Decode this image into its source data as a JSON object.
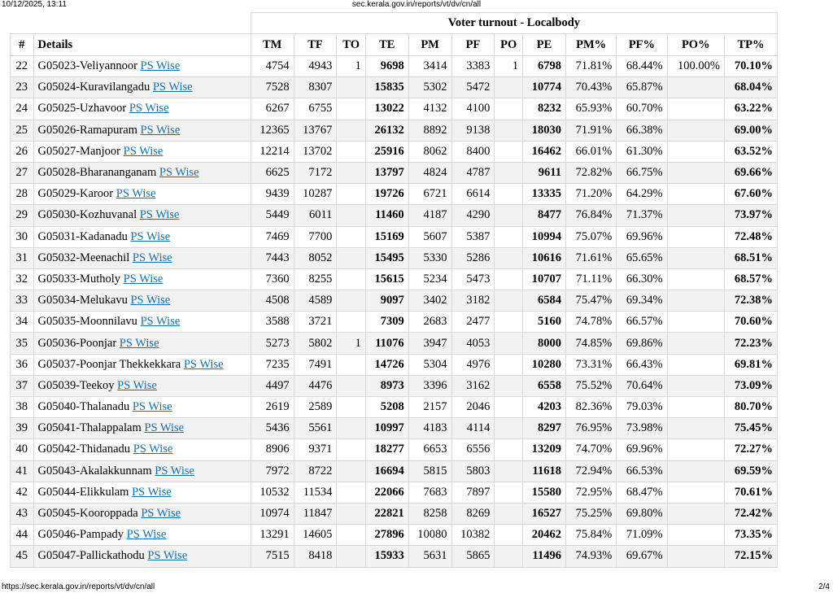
{
  "header": {
    "datetime": "10/12/2025, 13:11",
    "url": "sec.kerala.gov.in/reports/vt/dv/cn/all"
  },
  "footer": {
    "url": "https://sec.kerala.gov.in/reports/vt/dv/cn/all",
    "page": "2/4"
  },
  "table": {
    "title": "Voter turnout - Localbody",
    "columns": [
      "#",
      "Details",
      "TM",
      "TF",
      "TO",
      "TE",
      "PM",
      "PF",
      "PO",
      "PE",
      "PM%",
      "PF%",
      "PO%",
      "TP%"
    ],
    "link_label": "PS Wise",
    "rows": [
      {
        "n": "22",
        "d": "G05023-Veliyannoor",
        "tm": "4754",
        "tf": "4943",
        "to": "1",
        "te": "9698",
        "pm": "3414",
        "pf": "3383",
        "po": "1",
        "pe": "6798",
        "pmp": "71.81%",
        "pfp": "68.44%",
        "pop": "100.00%",
        "tp": "70.10%"
      },
      {
        "n": "23",
        "d": "G05024-Kuravilangadu",
        "tm": "7528",
        "tf": "8307",
        "to": "",
        "te": "15835",
        "pm": "5302",
        "pf": "5472",
        "po": "",
        "pe": "10774",
        "pmp": "70.43%",
        "pfp": "65.87%",
        "pop": "",
        "tp": "68.04%"
      },
      {
        "n": "24",
        "d": "G05025-Uzhavoor",
        "tm": "6267",
        "tf": "6755",
        "to": "",
        "te": "13022",
        "pm": "4132",
        "pf": "4100",
        "po": "",
        "pe": "8232",
        "pmp": "65.93%",
        "pfp": "60.70%",
        "pop": "",
        "tp": "63.22%"
      },
      {
        "n": "25",
        "d": "G05026-Ramapuram",
        "tm": "12365",
        "tf": "13767",
        "to": "",
        "te": "26132",
        "pm": "8892",
        "pf": "9138",
        "po": "",
        "pe": "18030",
        "pmp": "71.91%",
        "pfp": "66.38%",
        "pop": "",
        "tp": "69.00%"
      },
      {
        "n": "26",
        "d": "G05027-Manjoor",
        "tm": "12214",
        "tf": "13702",
        "to": "",
        "te": "25916",
        "pm": "8062",
        "pf": "8400",
        "po": "",
        "pe": "16462",
        "pmp": "66.01%",
        "pfp": "61.30%",
        "pop": "",
        "tp": "63.52%"
      },
      {
        "n": "27",
        "d": "G05028-Bharananganam",
        "tm": "6625",
        "tf": "7172",
        "to": "",
        "te": "13797",
        "pm": "4824",
        "pf": "4787",
        "po": "",
        "pe": "9611",
        "pmp": "72.82%",
        "pfp": "66.75%",
        "pop": "",
        "tp": "69.66%"
      },
      {
        "n": "28",
        "d": "G05029-Karoor",
        "tm": "9439",
        "tf": "10287",
        "to": "",
        "te": "19726",
        "pm": "6721",
        "pf": "6614",
        "po": "",
        "pe": "13335",
        "pmp": "71.20%",
        "pfp": "64.29%",
        "pop": "",
        "tp": "67.60%"
      },
      {
        "n": "29",
        "d": "G05030-Kozhuvanal",
        "tm": "5449",
        "tf": "6011",
        "to": "",
        "te": "11460",
        "pm": "4187",
        "pf": "4290",
        "po": "",
        "pe": "8477",
        "pmp": "76.84%",
        "pfp": "71.37%",
        "pop": "",
        "tp": "73.97%"
      },
      {
        "n": "30",
        "d": "G05031-Kadanadu",
        "tm": "7469",
        "tf": "7700",
        "to": "",
        "te": "15169",
        "pm": "5607",
        "pf": "5387",
        "po": "",
        "pe": "10994",
        "pmp": "75.07%",
        "pfp": "69.96%",
        "pop": "",
        "tp": "72.48%"
      },
      {
        "n": "31",
        "d": "G05032-Meenachil",
        "tm": "7443",
        "tf": "8052",
        "to": "",
        "te": "15495",
        "pm": "5330",
        "pf": "5286",
        "po": "",
        "pe": "10616",
        "pmp": "71.61%",
        "pfp": "65.65%",
        "pop": "",
        "tp": "68.51%"
      },
      {
        "n": "32",
        "d": "G05033-Mutholy",
        "tm": "7360",
        "tf": "8255",
        "to": "",
        "te": "15615",
        "pm": "5234",
        "pf": "5473",
        "po": "",
        "pe": "10707",
        "pmp": "71.11%",
        "pfp": "66.30%",
        "pop": "",
        "tp": "68.57%"
      },
      {
        "n": "33",
        "d": "G05034-Melukavu",
        "tm": "4508",
        "tf": "4589",
        "to": "",
        "te": "9097",
        "pm": "3402",
        "pf": "3182",
        "po": "",
        "pe": "6584",
        "pmp": "75.47%",
        "pfp": "69.34%",
        "pop": "",
        "tp": "72.38%"
      },
      {
        "n": "34",
        "d": "G05035-Moonnilavu",
        "tm": "3588",
        "tf": "3721",
        "to": "",
        "te": "7309",
        "pm": "2683",
        "pf": "2477",
        "po": "",
        "pe": "5160",
        "pmp": "74.78%",
        "pfp": "66.57%",
        "pop": "",
        "tp": "70.60%"
      },
      {
        "n": "35",
        "d": "G05036-Poonjar",
        "tm": "5273",
        "tf": "5802",
        "to": "1",
        "te": "11076",
        "pm": "3947",
        "pf": "4053",
        "po": "",
        "pe": "8000",
        "pmp": "74.85%",
        "pfp": "69.86%",
        "pop": "",
        "tp": "72.23%"
      },
      {
        "n": "36",
        "d": "G05037-Poonjar Thekkekkara",
        "tm": "7235",
        "tf": "7491",
        "to": "",
        "te": "14726",
        "pm": "5304",
        "pf": "4976",
        "po": "",
        "pe": "10280",
        "pmp": "73.31%",
        "pfp": "66.43%",
        "pop": "",
        "tp": "69.81%"
      },
      {
        "n": "37",
        "d": "G05039-Teekoy",
        "tm": "4497",
        "tf": "4476",
        "to": "",
        "te": "8973",
        "pm": "3396",
        "pf": "3162",
        "po": "",
        "pe": "6558",
        "pmp": "75.52%",
        "pfp": "70.64%",
        "pop": "",
        "tp": "73.09%"
      },
      {
        "n": "38",
        "d": "G05040-Thalanadu",
        "tm": "2619",
        "tf": "2589",
        "to": "",
        "te": "5208",
        "pm": "2157",
        "pf": "2046",
        "po": "",
        "pe": "4203",
        "pmp": "82.36%",
        "pfp": "79.03%",
        "pop": "",
        "tp": "80.70%"
      },
      {
        "n": "39",
        "d": "G05041-Thalappalam",
        "tm": "5436",
        "tf": "5561",
        "to": "",
        "te": "10997",
        "pm": "4183",
        "pf": "4114",
        "po": "",
        "pe": "8297",
        "pmp": "76.95%",
        "pfp": "73.98%",
        "pop": "",
        "tp": "75.45%"
      },
      {
        "n": "40",
        "d": "G05042-Thidanadu",
        "tm": "8906",
        "tf": "9371",
        "to": "",
        "te": "18277",
        "pm": "6653",
        "pf": "6556",
        "po": "",
        "pe": "13209",
        "pmp": "74.70%",
        "pfp": "69.96%",
        "pop": "",
        "tp": "72.27%"
      },
      {
        "n": "41",
        "d": "G05043-Akalakkunnam",
        "tm": "7972",
        "tf": "8722",
        "to": "",
        "te": "16694",
        "pm": "5815",
        "pf": "5803",
        "po": "",
        "pe": "11618",
        "pmp": "72.94%",
        "pfp": "66.53%",
        "pop": "",
        "tp": "69.59%"
      },
      {
        "n": "42",
        "d": "G05044-Elikkulam",
        "tm": "10532",
        "tf": "11534",
        "to": "",
        "te": "22066",
        "pm": "7683",
        "pf": "7897",
        "po": "",
        "pe": "15580",
        "pmp": "72.95%",
        "pfp": "68.47%",
        "pop": "",
        "tp": "70.61%"
      },
      {
        "n": "43",
        "d": "G05045-Kooroppada",
        "tm": "10974",
        "tf": "11847",
        "to": "",
        "te": "22821",
        "pm": "8258",
        "pf": "8269",
        "po": "",
        "pe": "16527",
        "pmp": "75.25%",
        "pfp": "69.80%",
        "pop": "",
        "tp": "72.42%"
      },
      {
        "n": "44",
        "d": "G05046-Pampady",
        "tm": "13291",
        "tf": "14605",
        "to": "",
        "te": "27896",
        "pm": "10080",
        "pf": "10382",
        "po": "",
        "pe": "20462",
        "pmp": "75.84%",
        "pfp": "71.09%",
        "pop": "",
        "tp": "73.35%"
      },
      {
        "n": "45",
        "d": "G05047-Pallickathodu",
        "tm": "7515",
        "tf": "8418",
        "to": "",
        "te": "15933",
        "pm": "5631",
        "pf": "5865",
        "po": "",
        "pe": "11496",
        "pmp": "74.93%",
        "pfp": "69.67%",
        "pop": "",
        "tp": "72.15%"
      }
    ]
  }
}
